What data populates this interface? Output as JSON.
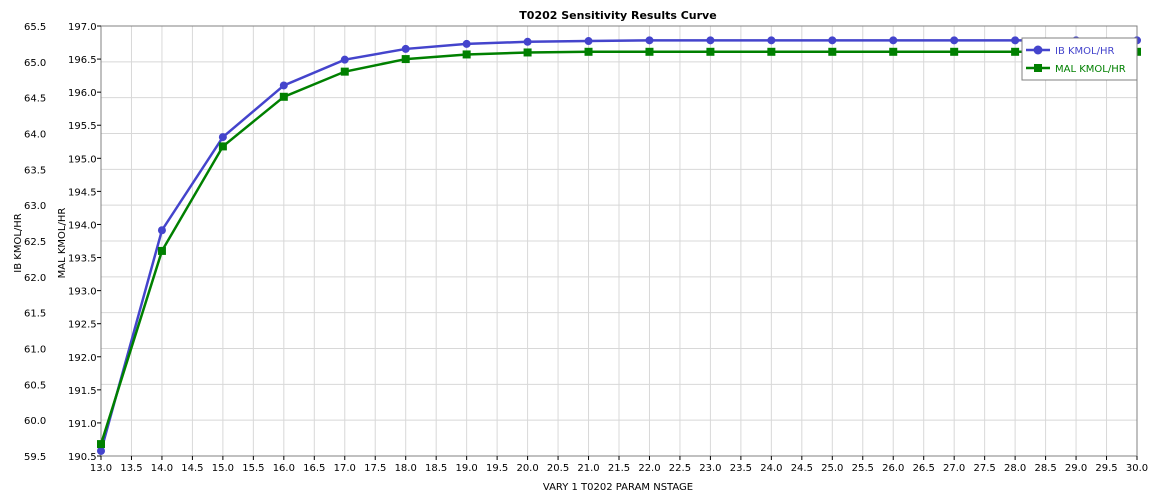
{
  "chart_data": {
    "type": "line",
    "title": "T0202 Sensitivity Results Curve",
    "xlabel": "VARY   1 T0202 PARAM NSTAGE",
    "xlim": [
      13.0,
      30.0
    ],
    "x_ticks": [
      "13.0",
      "13.5",
      "14.0",
      "14.5",
      "15.0",
      "15.5",
      "16.0",
      "16.5",
      "17.0",
      "17.5",
      "18.0",
      "18.5",
      "19.0",
      "19.5",
      "20.0",
      "20.5",
      "21.0",
      "21.5",
      "22.0",
      "22.5",
      "23.0",
      "23.5",
      "24.0",
      "24.5",
      "25.0",
      "25.5",
      "26.0",
      "26.5",
      "27.0",
      "27.5",
      "28.0",
      "28.5",
      "29.0",
      "29.5",
      "30.0"
    ],
    "y_left": {
      "label": "IB KMOL/HR",
      "lim": [
        59.5,
        65.5
      ],
      "ticks": [
        "59.5",
        "60.0",
        "60.5",
        "61.0",
        "61.5",
        "62.0",
        "62.5",
        "63.0",
        "63.5",
        "64.0",
        "64.5",
        "65.0",
        "65.5"
      ]
    },
    "y_right": {
      "label": "MAL KMOL/HR",
      "lim": [
        190.5,
        197.0
      ],
      "ticks": [
        "190.5",
        "191.0",
        "191.5",
        "192.0",
        "192.5",
        "193.0",
        "193.5",
        "194.0",
        "194.5",
        "195.0",
        "195.5",
        "196.0",
        "196.5",
        "197.0"
      ]
    },
    "grid": true,
    "legend_position": "top-right",
    "x": [
      13,
      14,
      15,
      16,
      17,
      18,
      19,
      20,
      21,
      22,
      23,
      24,
      25,
      26,
      27,
      28,
      29,
      30
    ],
    "series": [
      {
        "name": "IB KMOL/HR",
        "axis": "left",
        "color": "#4444cc",
        "marker": "circle",
        "values": [
          59.57,
          62.65,
          63.95,
          64.67,
          65.03,
          65.18,
          65.25,
          65.28,
          65.29,
          65.3,
          65.3,
          65.3,
          65.3,
          65.3,
          65.3,
          65.3,
          65.3,
          65.3
        ]
      },
      {
        "name": "MAL KMOL/HR",
        "axis": "right",
        "color": "#008000",
        "marker": "square",
        "values": [
          190.68,
          193.6,
          195.18,
          195.93,
          196.31,
          196.5,
          196.57,
          196.6,
          196.61,
          196.61,
          196.61,
          196.61,
          196.61,
          196.61,
          196.61,
          196.61,
          196.61,
          196.61
        ]
      }
    ]
  }
}
